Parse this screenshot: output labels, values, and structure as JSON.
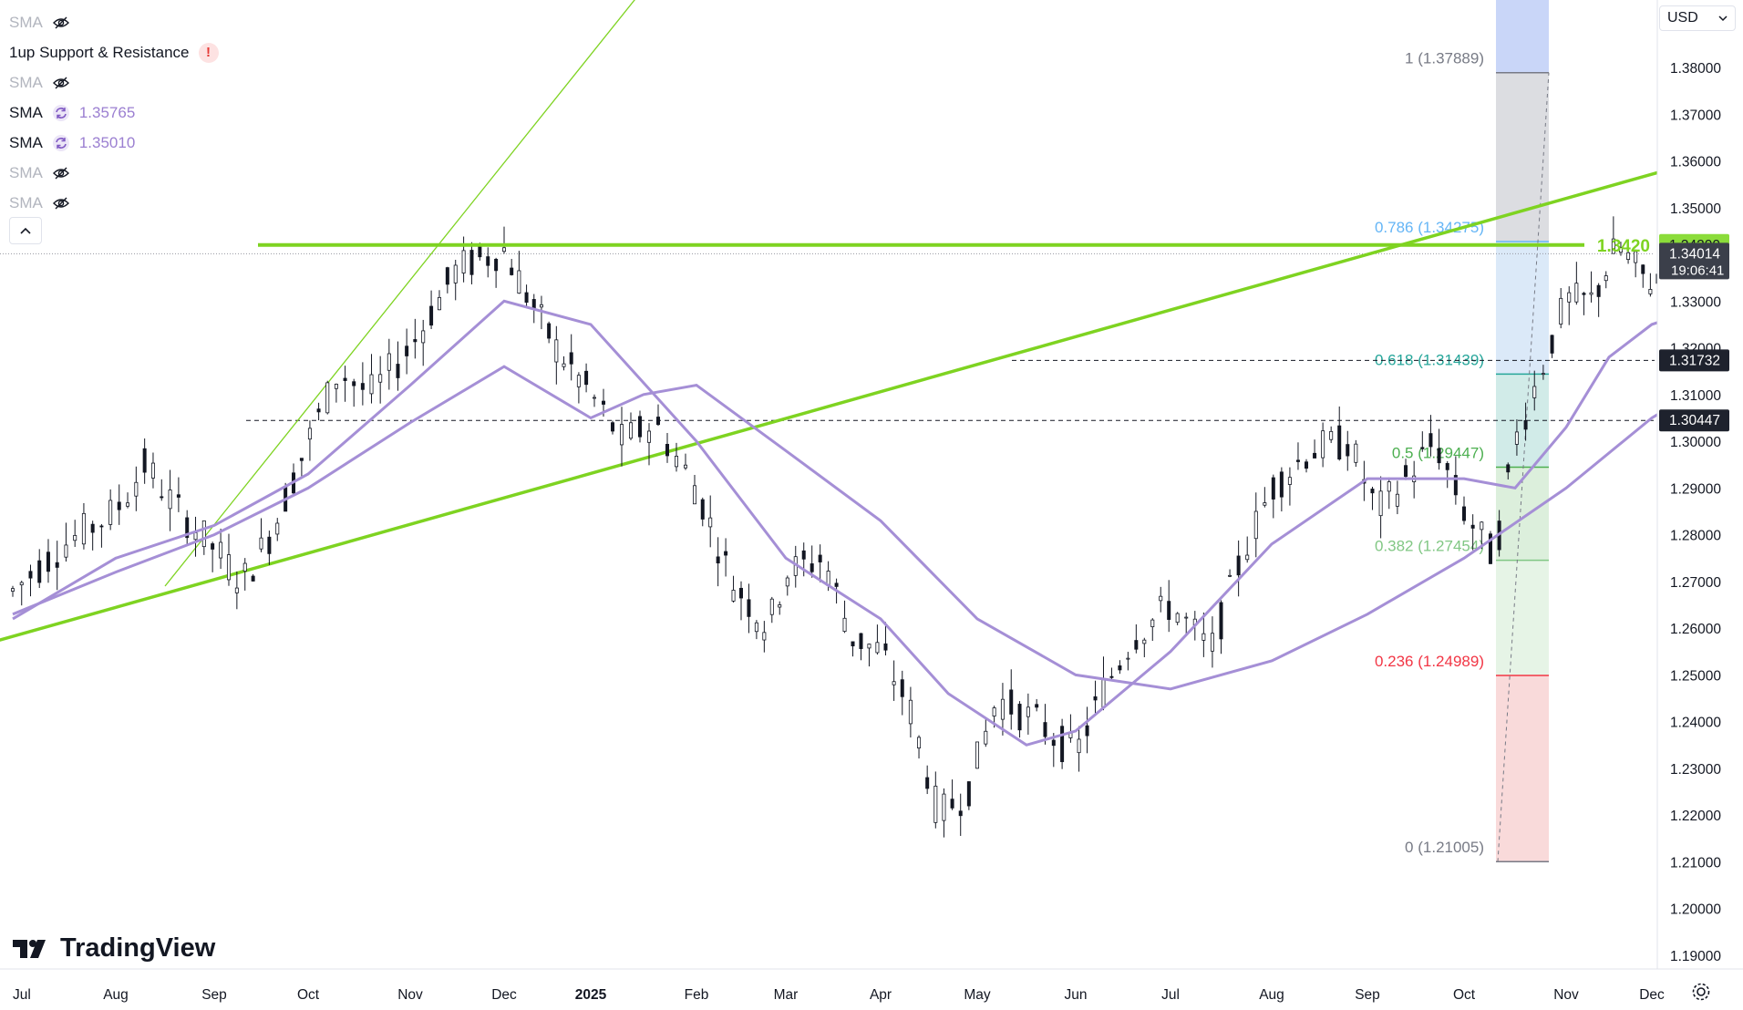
{
  "currency": {
    "label": "USD"
  },
  "brand": {
    "name": "TradingView"
  },
  "legend": [
    {
      "name": "SMA",
      "hidden": true,
      "value": ""
    },
    {
      "name": "1up Support & Resistance",
      "hidden": false,
      "warning": "!",
      "value": ""
    },
    {
      "name": "SMA",
      "hidden": true,
      "value": ""
    },
    {
      "name": "SMA",
      "hidden": false,
      "value": "1.35765"
    },
    {
      "name": "SMA",
      "hidden": false,
      "value": "1.35010"
    },
    {
      "name": "SMA",
      "hidden": true,
      "value": ""
    },
    {
      "name": "SMA",
      "hidden": true,
      "value": ""
    }
  ],
  "chart_data": {
    "type": "candlestick",
    "instrument_hint": "GBPUSD daily",
    "y_axis": {
      "min": 1.19,
      "max": 1.385,
      "ticks": [
        "1.38000",
        "1.37000",
        "1.36000",
        "1.35000",
        "1.34000",
        "1.33000",
        "1.32000",
        "1.31000",
        "1.30000",
        "1.29000",
        "1.28000",
        "1.27000",
        "1.26000",
        "1.25000",
        "1.24000",
        "1.23000",
        "1.22000",
        "1.21000",
        "1.20000",
        "1.19000"
      ]
    },
    "x_axis": {
      "labels": [
        "Jul",
        "Aug",
        "Sep",
        "Oct",
        "Nov",
        "Dec",
        "2025",
        "Feb",
        "Mar",
        "Apr",
        "May",
        "Jun",
        "Jul",
        "Aug",
        "Sep",
        "Oct",
        "Nov",
        "Dec"
      ]
    },
    "price_path": [
      [
        0,
        1.268
      ],
      [
        0.5,
        1.278
      ],
      [
        1,
        1.285
      ],
      [
        1.3,
        1.295
      ],
      [
        1.6,
        1.286
      ],
      [
        2,
        1.277
      ],
      [
        2.3,
        1.27
      ],
      [
        2.6,
        1.28
      ],
      [
        3,
        1.3
      ],
      [
        3.3,
        1.315
      ],
      [
        3.6,
        1.31
      ],
      [
        4,
        1.32
      ],
      [
        4.5,
        1.337
      ],
      [
        5,
        1.341
      ],
      [
        5.3,
        1.33
      ],
      [
        5.6,
        1.32
      ],
      [
        6,
        1.31
      ],
      [
        6.3,
        1.3
      ],
      [
        6.6,
        1.304
      ],
      [
        7,
        1.29
      ],
      [
        7.4,
        1.27
      ],
      [
        7.8,
        1.26
      ],
      [
        8,
        1.272
      ],
      [
        8.4,
        1.275
      ],
      [
        8.7,
        1.258
      ],
      [
        9,
        1.255
      ],
      [
        9.3,
        1.243
      ],
      [
        9.6,
        1.22
      ],
      [
        9.9,
        1.225
      ],
      [
        10.2,
        1.245
      ],
      [
        10.6,
        1.24
      ],
      [
        11,
        1.233
      ],
      [
        11.3,
        1.247
      ],
      [
        11.6,
        1.258
      ],
      [
        12,
        1.265
      ],
      [
        12.4,
        1.255
      ],
      [
        12.7,
        1.275
      ],
      [
        13,
        1.29
      ],
      [
        13.4,
        1.298
      ],
      [
        13.8,
        1.3
      ],
      [
        14.1,
        1.285
      ],
      [
        14.4,
        1.292
      ],
      [
        14.7,
        1.3
      ],
      [
        15,
        1.285
      ],
      [
        15.3,
        1.275
      ],
      [
        15.5,
        1.3
      ],
      [
        15.7,
        1.312
      ],
      [
        16,
        1.33
      ],
      [
        16.3,
        1.33
      ],
      [
        16.6,
        1.342
      ],
      [
        16.9,
        1.335
      ],
      [
        17.2,
        1.333
      ],
      [
        17.5,
        1.325
      ],
      [
        17.8,
        1.318
      ],
      [
        18.1,
        1.325
      ],
      [
        18.4,
        1.338
      ],
      [
        18.7,
        1.35
      ],
      [
        19,
        1.355
      ],
      [
        19.3,
        1.352
      ],
      [
        19.6,
        1.358
      ],
      [
        19.9,
        1.345
      ],
      [
        20.2,
        1.34
      ],
      [
        20.5,
        1.358
      ],
      [
        20.8,
        1.362
      ],
      [
        21.1,
        1.373
      ],
      [
        21.4,
        1.375
      ],
      [
        21.7,
        1.365
      ],
      [
        22,
        1.36
      ],
      [
        22.3,
        1.352
      ],
      [
        22.5,
        1.34
      ]
    ],
    "sma_fast_path": [
      [
        0,
        1.262
      ],
      [
        1,
        1.275
      ],
      [
        2,
        1.282
      ],
      [
        3,
        1.293
      ],
      [
        4,
        1.312
      ],
      [
        5,
        1.33
      ],
      [
        6,
        1.325
      ],
      [
        7,
        1.3
      ],
      [
        8,
        1.275
      ],
      [
        9,
        1.262
      ],
      [
        9.7,
        1.246
      ],
      [
        10.5,
        1.235
      ],
      [
        11,
        1.238
      ],
      [
        12,
        1.255
      ],
      [
        13,
        1.278
      ],
      [
        14,
        1.292
      ],
      [
        15,
        1.292
      ],
      [
        15.5,
        1.29
      ],
      [
        16,
        1.303
      ],
      [
        16.5,
        1.318
      ],
      [
        17,
        1.325
      ],
      [
        17.5,
        1.328
      ],
      [
        18,
        1.326
      ],
      [
        18.5,
        1.333
      ],
      [
        19,
        1.342
      ],
      [
        19.5,
        1.35
      ],
      [
        20,
        1.352
      ],
      [
        20.5,
        1.354
      ],
      [
        21,
        1.36
      ],
      [
        21.5,
        1.364
      ],
      [
        22,
        1.36
      ],
      [
        22.6,
        1.358
      ]
    ],
    "sma_slow_path": [
      [
        0,
        1.263
      ],
      [
        1,
        1.272
      ],
      [
        2,
        1.28
      ],
      [
        3,
        1.29
      ],
      [
        4,
        1.304
      ],
      [
        5,
        1.316
      ],
      [
        6,
        1.305
      ],
      [
        6.5,
        1.31
      ],
      [
        7,
        1.312
      ],
      [
        8,
        1.298
      ],
      [
        9,
        1.283
      ],
      [
        10,
        1.262
      ],
      [
        11,
        1.25
      ],
      [
        12,
        1.247
      ],
      [
        13,
        1.253
      ],
      [
        14,
        1.263
      ],
      [
        15,
        1.275
      ],
      [
        16,
        1.29
      ],
      [
        17,
        1.305
      ],
      [
        18,
        1.316
      ],
      [
        19,
        1.325
      ],
      [
        20,
        1.336
      ],
      [
        21,
        1.345
      ],
      [
        22,
        1.349
      ],
      [
        22.6,
        1.35
      ]
    ],
    "lines": {
      "horizontal_support": 1.342,
      "trend_lower": [
        [
          -0.2,
          1.257
        ],
        [
          22,
          1.383
        ]
      ],
      "trend_steep": [
        [
          1.5,
          1.269
        ],
        [
          10,
          1.486
        ]
      ]
    },
    "dashed_levels": [
      1.31732,
      1.30447
    ],
    "current": {
      "price": "1.34014",
      "countdown": "19:06:41",
      "dotted_level": 1.34014
    },
    "tags": [
      {
        "text": "1.34200",
        "price": 1.342,
        "color": "#8bdc3a"
      },
      {
        "text": "1.34014",
        "price": 1.34014,
        "color": "#3b3f4a",
        "sub": "19:06:41"
      },
      {
        "text": "1.31732",
        "price": 1.31732,
        "color": "#1e222d"
      },
      {
        "text": "1.30447",
        "price": 1.30447,
        "color": "#1e222d"
      }
    ],
    "support_label": {
      "text": "1.3420",
      "price": 1.342
    },
    "fib_levels": [
      {
        "label": "1 (1.37889)",
        "price": 1.37889,
        "color": "#787b86",
        "band": "#dcdde1"
      },
      {
        "label": "0.786 (1.34275)",
        "price": 1.34275,
        "color": "#64b5f6",
        "band": "#dbe9f8"
      },
      {
        "label": "0.618 (1.31439)",
        "price": 1.31439,
        "color": "#26a69a",
        "band": "#d1ebe8"
      },
      {
        "label": "0.5 (1.29447)",
        "price": 1.29447,
        "color": "#4caf50",
        "band": "#dcefdc"
      },
      {
        "label": "0.382 (1.27454)",
        "price": 1.27454,
        "color": "#81c784",
        "band": "#e6f4e6"
      },
      {
        "label": "0.236 (1.24989)",
        "price": 1.24989,
        "color": "#f23645",
        "band": "#f9dada"
      },
      {
        "label": "0 (1.21005)",
        "price": 1.21005,
        "color": "#787b86",
        "band": ""
      }
    ],
    "fib_top_band": {
      "color": "#c9d6f8"
    },
    "colors": {
      "up": "#131722",
      "down": "#131722",
      "sma": "#a58fd6",
      "trend": "#7ed321",
      "support": "#7ed321"
    }
  }
}
